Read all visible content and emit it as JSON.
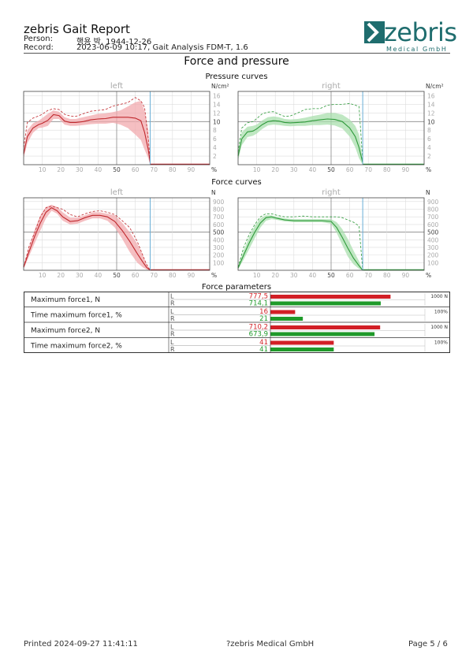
{
  "header": {
    "title": "zebris Gait Report",
    "person_label": "Person:",
    "person_value": "행용 박, 1944-12-26",
    "record_label": "Record:",
    "record_value": "2023-06-09 10:17, Gait Analysis FDM-T, 1.6",
    "logo_text": "zebris",
    "logo_sub": "Medical GmbH"
  },
  "page_title": "Force and pressure",
  "colors": {
    "left_line": "#c0282d",
    "left_band": "#f1a9ad",
    "right_line": "#2e9a3a",
    "right_band": "#a9dfae",
    "marker": "#6aaed6",
    "param_left": "#d21f26",
    "param_right": "#1f9a2a",
    "logo": "#1f6d6e"
  },
  "chart_data": [
    {
      "type": "line",
      "section": "Pressure curves",
      "panel": "left",
      "unit": "N/cm²",
      "xticks": [
        10,
        20,
        30,
        40,
        50,
        60,
        70,
        80,
        90
      ],
      "x_unit": "%",
      "yticks": [
        2,
        4,
        6,
        8,
        10,
        12,
        14,
        16
      ],
      "xlim": [
        0,
        100
      ],
      "ylim": [
        0,
        17
      ],
      "marker_x": 68,
      "x": [
        0,
        2,
        5,
        8,
        10,
        13,
        16,
        19,
        22,
        25,
        28,
        32,
        36,
        40,
        44,
        48,
        52,
        56,
        60,
        63,
        65,
        67,
        68
      ],
      "mean": [
        2.5,
        6.5,
        8.5,
        9.3,
        9.6,
        10.3,
        11.6,
        11.4,
        10.1,
        9.8,
        9.8,
        10.0,
        10.4,
        10.6,
        10.7,
        11.0,
        11.0,
        11.0,
        10.8,
        10.2,
        7.5,
        3.5,
        0.5
      ],
      "upper": [
        3.5,
        8.0,
        9.6,
        10.2,
        10.8,
        11.8,
        12.6,
        12.3,
        11.0,
        10.6,
        10.6,
        11.0,
        11.4,
        11.8,
        11.9,
        12.2,
        12.6,
        13.5,
        14.5,
        14.8,
        12.5,
        8.0,
        1.0
      ],
      "lower": [
        1.5,
        5.0,
        7.4,
        8.5,
        8.6,
        9.0,
        10.6,
        10.6,
        9.3,
        9.0,
        9.0,
        9.2,
        9.4,
        9.5,
        9.5,
        9.7,
        9.3,
        8.5,
        7.0,
        5.7,
        3.5,
        1.5,
        0.0
      ],
      "dashed": [
        4.0,
        9.8,
        10.8,
        11.3,
        11.7,
        12.6,
        13.0,
        12.8,
        11.7,
        11.3,
        11.2,
        11.8,
        12.4,
        12.6,
        12.8,
        13.6,
        14.0,
        14.4,
        15.6,
        14.8,
        13.3,
        6.0,
        1.0
      ]
    },
    {
      "type": "line",
      "section": "Pressure curves",
      "panel": "right",
      "unit": "N/cm²",
      "xticks": [
        10,
        20,
        30,
        40,
        50,
        60,
        70,
        80,
        90
      ],
      "x_unit": "%",
      "yticks": [
        2,
        4,
        6,
        8,
        10,
        12,
        14,
        16
      ],
      "xlim": [
        0,
        100
      ],
      "ylim": [
        0,
        17
      ],
      "marker_x": 67,
      "x": [
        0,
        2,
        5,
        8,
        10,
        13,
        16,
        19,
        22,
        25,
        28,
        32,
        36,
        40,
        44,
        48,
        52,
        56,
        60,
        63,
        65,
        67
      ],
      "mean": [
        2.0,
        6.0,
        7.6,
        7.8,
        8.3,
        9.3,
        10.0,
        10.2,
        10.1,
        9.8,
        9.7,
        9.8,
        9.9,
        10.2,
        10.4,
        10.6,
        10.5,
        10.0,
        8.5,
        6.5,
        4.0,
        0.5
      ],
      "upper": [
        3.0,
        7.5,
        8.8,
        9.0,
        9.3,
        10.3,
        11.0,
        11.2,
        11.0,
        10.6,
        10.5,
        10.6,
        10.9,
        11.3,
        11.6,
        12.0,
        12.0,
        11.6,
        10.5,
        9.0,
        7.0,
        1.0
      ],
      "lower": [
        1.0,
        4.5,
        6.4,
        6.7,
        7.2,
        8.3,
        9.1,
        9.3,
        9.2,
        9.0,
        8.9,
        9.0,
        9.0,
        9.2,
        9.2,
        9.3,
        9.1,
        8.4,
        6.5,
        4.0,
        1.5,
        0.0
      ],
      "dashed": [
        3.0,
        8.5,
        9.7,
        10.0,
        10.7,
        11.8,
        12.2,
        12.3,
        11.7,
        11.2,
        11.3,
        12.0,
        12.8,
        13.0,
        13.0,
        13.8,
        14.0,
        14.0,
        14.2,
        13.8,
        13.5,
        1.0
      ]
    },
    {
      "type": "line",
      "section": "Force curves",
      "panel": "left",
      "unit": "N",
      "xticks": [
        10,
        20,
        30,
        40,
        50,
        60,
        70,
        80,
        90
      ],
      "x_unit": "%",
      "yticks": [
        100,
        200,
        300,
        400,
        500,
        600,
        700,
        800,
        900
      ],
      "xlim": [
        0,
        100
      ],
      "ylim": [
        0,
        950
      ],
      "marker_x": 68,
      "x": [
        0,
        3,
        6,
        9,
        12,
        15,
        18,
        21,
        25,
        29,
        33,
        37,
        41,
        45,
        49,
        53,
        57,
        61,
        64,
        66,
        68
      ],
      "mean": [
        40,
        250,
        450,
        620,
        760,
        820,
        780,
        700,
        640,
        650,
        690,
        720,
        720,
        700,
        640,
        520,
        380,
        220,
        110,
        40,
        0
      ],
      "upper": [
        60,
        310,
        540,
        720,
        830,
        860,
        830,
        760,
        690,
        690,
        720,
        760,
        760,
        740,
        720,
        620,
        500,
        350,
        200,
        80,
        0
      ],
      "lower": [
        20,
        190,
        360,
        520,
        680,
        780,
        740,
        650,
        600,
        610,
        650,
        680,
        680,
        650,
        560,
        410,
        240,
        100,
        40,
        10,
        0
      ],
      "dashed": [
        40,
        320,
        500,
        700,
        820,
        840,
        820,
        800,
        730,
        700,
        740,
        770,
        780,
        760,
        730,
        650,
        560,
        380,
        200,
        80,
        0
      ]
    },
    {
      "type": "line",
      "section": "Force curves",
      "panel": "right",
      "unit": "N",
      "xticks": [
        10,
        20,
        30,
        40,
        50,
        60,
        70,
        80,
        90
      ],
      "x_unit": "%",
      "yticks": [
        100,
        200,
        300,
        400,
        500,
        600,
        700,
        800,
        900
      ],
      "xlim": [
        0,
        100
      ],
      "ylim": [
        0,
        950
      ],
      "marker_x": 67,
      "x": [
        0,
        3,
        6,
        9,
        12,
        15,
        18,
        21,
        25,
        30,
        35,
        40,
        45,
        50,
        53,
        56,
        59,
        62,
        65,
        67
      ],
      "mean": [
        30,
        200,
        360,
        500,
        620,
        690,
        700,
        680,
        660,
        650,
        650,
        650,
        650,
        640,
        560,
        430,
        290,
        160,
        60,
        0
      ],
      "upper": [
        50,
        260,
        440,
        580,
        680,
        720,
        720,
        700,
        680,
        670,
        670,
        670,
        670,
        670,
        630,
        540,
        410,
        260,
        120,
        0
      ],
      "lower": [
        10,
        140,
        280,
        420,
        560,
        650,
        670,
        660,
        640,
        630,
        630,
        630,
        630,
        610,
        490,
        330,
        180,
        80,
        20,
        0
      ],
      "dashed": [
        40,
        300,
        470,
        600,
        700,
        740,
        740,
        720,
        700,
        700,
        710,
        700,
        700,
        700,
        700,
        690,
        660,
        630,
        580,
        0
      ]
    }
  ],
  "sections": {
    "pressure": "Pressure curves",
    "force": "Force curves",
    "params": "Force parameters",
    "left": "left",
    "right": "right",
    "pressure_unit": "N/cm²",
    "force_unit": "N",
    "x_unit": "%"
  },
  "force_parameters": [
    {
      "name": "Maximum force1, N",
      "L": "777,5",
      "R": "714,1",
      "l_value": 777.5,
      "r_value": 714.1,
      "max": 1000,
      "scale_label": "1000 N"
    },
    {
      "name": "Time maximum force1, %",
      "L": "16",
      "R": "21",
      "l_value": 16,
      "r_value": 21,
      "max": 100,
      "scale_label": "100%"
    },
    {
      "name": "Maximum force2, N",
      "L": "710,2",
      "R": "673,9",
      "l_value": 710.2,
      "r_value": 673.9,
      "max": 1000,
      "scale_label": "1000 N"
    },
    {
      "name": "Time maximum force2, %",
      "L": "41",
      "R": "41",
      "l_value": 41,
      "r_value": 41,
      "max": 100,
      "scale_label": "100%"
    }
  ],
  "footer": {
    "printed": "Printed  2024-09-27 11:41:11",
    "company": "?zebris Medical GmbH",
    "page": "Page  5 / 6"
  }
}
